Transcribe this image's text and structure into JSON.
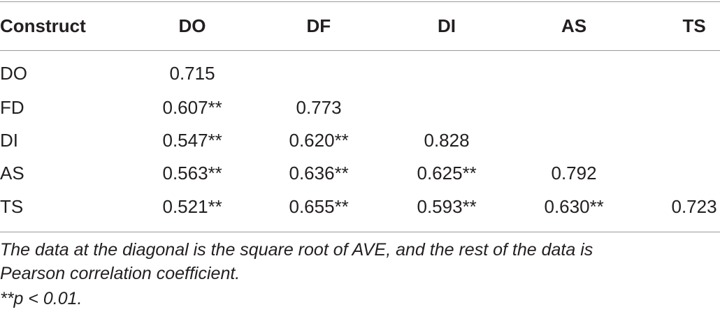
{
  "table": {
    "header": [
      "Construct",
      "DO",
      "DF",
      "DI",
      "AS",
      "TS"
    ],
    "rows": [
      [
        "DO",
        "0.715"
      ],
      [
        "FD",
        "0.607**",
        "0.773"
      ],
      [
        "DI",
        "0.547**",
        "0.620**",
        "0.828"
      ],
      [
        "AS",
        "0.563**",
        "0.636**",
        "0.625**",
        "0.792"
      ],
      [
        "TS",
        "0.521**",
        "0.655**",
        "0.593**",
        "0.630**",
        "0.723"
      ]
    ],
    "footnotes": [
      "The data at the diagonal is the square root of AVE, and the rest of the data is",
      "Pearson correlation coefficient.",
      "**p < 0.01."
    ]
  }
}
